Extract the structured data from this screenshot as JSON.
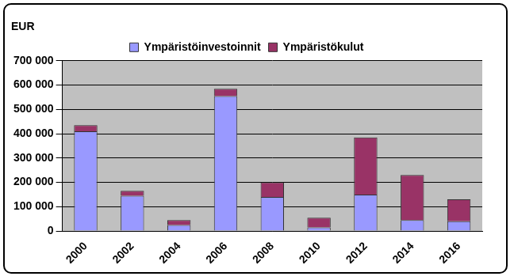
{
  "chart_data": {
    "type": "bar",
    "ylabel": "EUR",
    "categories": [
      "2000",
      "2002",
      "2004",
      "2006",
      "2008",
      "2010",
      "2012",
      "2014",
      "2016"
    ],
    "series": [
      {
        "name": "Ympäristöinvestoinnit",
        "color": "#9999ff",
        "values": [
          410000,
          145000,
          25000,
          555000,
          140000,
          15000,
          150000,
          45000,
          40000
        ]
      },
      {
        "name": "Ympäristökulut",
        "color": "#993366",
        "values": [
          25000,
          20000,
          20000,
          30000,
          60000,
          40000,
          235000,
          185000,
          90000
        ]
      }
    ],
    "stacked": true,
    "ylim": [
      0,
      700000
    ],
    "yticks": [
      0,
      {
        "value": 100000,
        "label": "100 000"
      },
      {
        "value": 200000,
        "label": "200 000"
      },
      {
        "value": 300000,
        "label": "300 000"
      },
      {
        "value": 400000,
        "label": "400 000"
      },
      {
        "value": 500000,
        "label": "500 000"
      },
      {
        "value": 600000,
        "label": "600 000"
      },
      {
        "value": 700000,
        "label": "700 000"
      }
    ],
    "grid": true,
    "legend": "top"
  }
}
